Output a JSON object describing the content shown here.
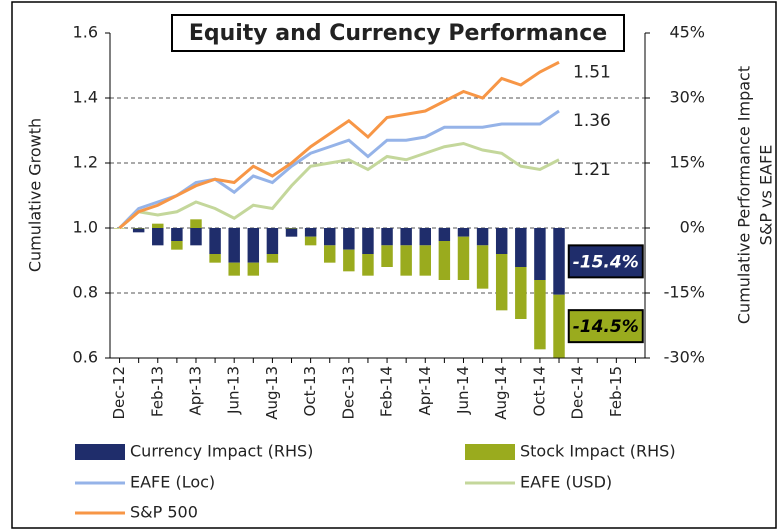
{
  "chart_data": {
    "type": "bar-line",
    "title": "Equity and Currency Performance",
    "ylabel": "Cumulative Growth",
    "y2label": [
      "Cumulative Performance Impact",
      "S&P vs EAFE"
    ],
    "categories": [
      "Dec-12",
      null,
      "Feb-13",
      null,
      "Apr-13",
      null,
      "Jun-13",
      null,
      "Aug-13",
      null,
      "Oct-13",
      null,
      "Dec-13",
      null,
      "Feb-14",
      null,
      "Apr-14",
      null,
      "Jun-14",
      null,
      "Aug-14",
      null,
      "Oct-14",
      null,
      "Dec-14",
      null,
      "Feb-15",
      null
    ],
    "ylim": [
      0.6,
      1.6
    ],
    "yticks": [
      0.6,
      0.8,
      {
        "value": 1,
        "label": "1.0"
      },
      1.2,
      1.4,
      1.6
    ],
    "y2lim": [
      -30,
      45
    ],
    "y2ticks": [
      {
        "value": -30,
        "label": "-30%"
      },
      {
        "value": -15,
        "label": "-15%"
      },
      {
        "value": 0,
        "label": "0%"
      },
      {
        "value": 15,
        "label": "15%"
      },
      {
        "value": 30,
        "label": "30%"
      },
      {
        "value": 45,
        "label": "45%"
      }
    ],
    "grid": true,
    "series": [
      {
        "name": "Currency Impact (RHS)",
        "kind": "bar",
        "axis": "y2",
        "color": "#1f2d6b",
        "values": [
          0,
          -1,
          -4,
          -3,
          -4,
          -6,
          -8,
          -8,
          -6,
          -2,
          -2,
          -4,
          -5,
          -6,
          -4,
          -4,
          -4,
          -3,
          -2,
          -4,
          -6,
          -9,
          -12,
          -15.4,
          null,
          null,
          null,
          null
        ],
        "value_labels": [
          null,
          null,
          null,
          null,
          null,
          null,
          null,
          null,
          null,
          null,
          null,
          null,
          null,
          null,
          null,
          null,
          null,
          null,
          null,
          null,
          null,
          null,
          null,
          "-15.4%",
          null,
          null,
          null,
          null
        ]
      },
      {
        "name": "Stock Impact (RHS)",
        "kind": "bar",
        "axis": "y2",
        "color": "#9aab1e",
        "values": [
          0,
          0,
          1,
          -2,
          2,
          -2,
          -3,
          -3,
          -2,
          0,
          -2,
          -4,
          -5,
          -5,
          -5,
          -7,
          -7,
          -9,
          -10,
          -10,
          -13,
          -12,
          -16,
          -14.5,
          null,
          null,
          null,
          null
        ],
        "value_labels": [
          null,
          null,
          null,
          null,
          null,
          null,
          null,
          null,
          null,
          null,
          null,
          null,
          null,
          null,
          null,
          null,
          null,
          null,
          null,
          null,
          null,
          null,
          null,
          "-14.5%",
          null,
          null,
          null,
          null
        ]
      },
      {
        "name": "EAFE (Loc)",
        "kind": "line",
        "color": "#95b3e8",
        "values": [
          1.0,
          1.06,
          1.08,
          1.1,
          1.14,
          1.15,
          1.11,
          1.16,
          1.14,
          1.19,
          1.23,
          1.25,
          1.27,
          1.22,
          1.27,
          1.27,
          1.28,
          1.31,
          1.31,
          1.31,
          1.32,
          1.32,
          1.32,
          1.36,
          null,
          null,
          null,
          null
        ]
      },
      {
        "name": "EAFE (USD)",
        "kind": "line",
        "color": "#c4d79b",
        "values": [
          1.0,
          1.05,
          1.04,
          1.05,
          1.08,
          1.06,
          1.03,
          1.07,
          1.06,
          1.13,
          1.19,
          1.2,
          1.21,
          1.18,
          1.22,
          1.21,
          1.23,
          1.25,
          1.26,
          1.24,
          1.23,
          1.19,
          1.18,
          1.21,
          null,
          null,
          null,
          null
        ]
      },
      {
        "name": "S&P 500",
        "kind": "line",
        "color": "#f79646",
        "values": [
          1.0,
          1.05,
          1.07,
          1.1,
          1.13,
          1.15,
          1.14,
          1.19,
          1.16,
          1.2,
          1.25,
          1.29,
          1.33,
          1.28,
          1.34,
          1.35,
          1.36,
          1.39,
          1.42,
          1.4,
          1.46,
          1.44,
          1.48,
          1.51,
          null,
          null,
          null,
          null
        ]
      }
    ]
  }
}
